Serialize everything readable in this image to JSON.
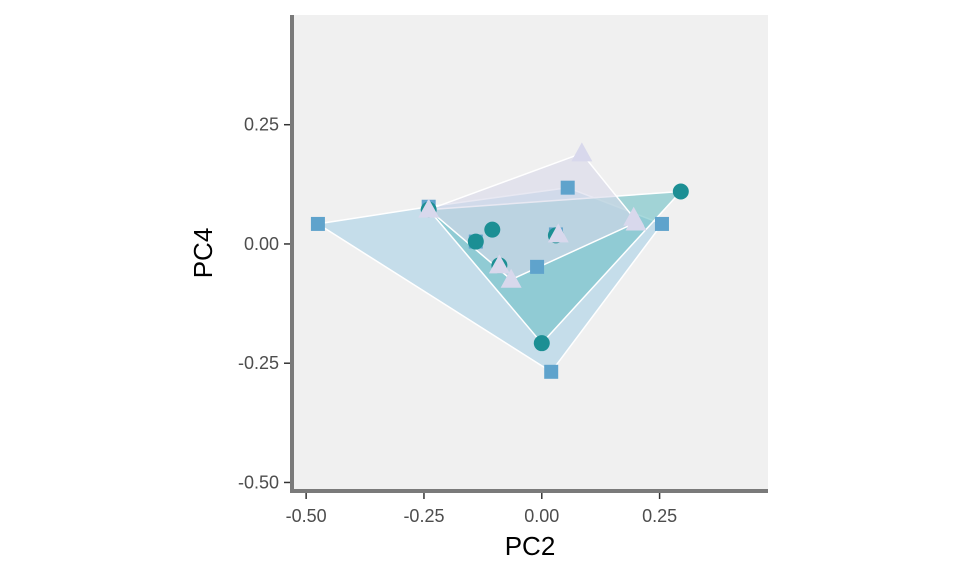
{
  "chart_data": {
    "type": "scatter",
    "xlabel": "PC2",
    "ylabel": "PC4",
    "xlim": [
      -0.53,
      0.48
    ],
    "ylim": [
      -0.52,
      0.48
    ],
    "x_ticks": [
      -0.5,
      -0.25,
      0.0,
      0.25
    ],
    "x_tick_labels": [
      "-0.50",
      "-0.25",
      "0.00",
      "0.25"
    ],
    "y_ticks": [
      -0.5,
      -0.25,
      0.0,
      0.25
    ],
    "y_tick_labels": [
      "-0.50",
      "-0.25",
      "0.00",
      "0.25"
    ],
    "grid": false,
    "legend": "none",
    "panel_background": "#f0f0f0",
    "axis_line_color": "#7a7a7a",
    "series": [
      {
        "marker": "square",
        "color": "#5fa3cc",
        "hull_color": "#a9d1e6",
        "points": [
          [
            -0.475,
            0.042
          ],
          [
            -0.24,
            0.078
          ],
          [
            -0.14,
            0.005
          ],
          [
            -0.01,
            -0.048
          ],
          [
            0.055,
            0.118
          ],
          [
            0.255,
            0.042
          ],
          [
            0.02,
            -0.268
          ],
          [
            0.03,
            0.02
          ]
        ]
      },
      {
        "marker": "circle",
        "color": "#1c8f94",
        "hull_color": "#6dbfc4",
        "points": [
          [
            -0.24,
            0.072
          ],
          [
            -0.105,
            0.03
          ],
          [
            -0.14,
            0.005
          ],
          [
            -0.09,
            -0.045
          ],
          [
            0.0,
            -0.208
          ],
          [
            0.03,
            0.018
          ],
          [
            0.295,
            0.11
          ]
        ]
      },
      {
        "marker": "triangle",
        "color": "#d8d8ec",
        "hull_color": "#d9d9ea",
        "points": [
          [
            -0.24,
            0.072
          ],
          [
            -0.09,
            -0.045
          ],
          [
            -0.065,
            -0.075
          ],
          [
            0.035,
            0.02
          ],
          [
            0.085,
            0.19
          ],
          [
            0.195,
            0.055
          ],
          [
            0.2,
            0.045
          ]
        ]
      }
    ]
  }
}
